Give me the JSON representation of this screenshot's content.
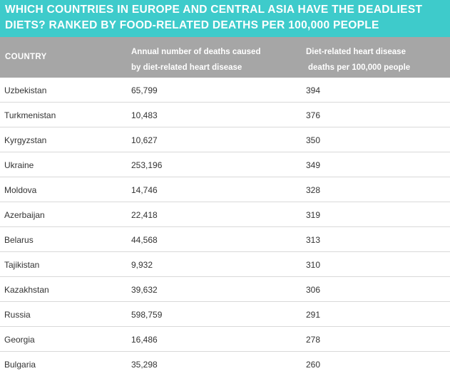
{
  "title": {
    "line1": "WHICH COUNTRIES IN EUROPE AND CENTRAL ASIA HAVE THE DEADLIEST",
    "line2": "DIETS? RANKED BY FOOD-RELATED DEATHS PER 100,000 PEOPLE"
  },
  "header": {
    "country": "COUNTRY",
    "deaths_line1": "Annual number of deaths caused",
    "deaths_line2": "by diet-related heart disease",
    "rate_line1": "Diet-related heart disease",
    "rate_line2": "deaths per 100,000 people"
  },
  "colors": {
    "title_bg": "#3ecbcb",
    "header_bg": "#a6a6a6",
    "row_divider": "#d9d9d9",
    "text": "#333333"
  },
  "chart_data": {
    "type": "table",
    "columns": [
      "COUNTRY",
      "Annual number of deaths caused by diet-related heart disease",
      "Diet-related heart disease deaths per 100,000 people"
    ],
    "rows": [
      [
        "Uzbekistan",
        "65,799",
        "394"
      ],
      [
        "Turkmenistan",
        "10,483",
        "376"
      ],
      [
        "Kyrgyzstan",
        "10,627",
        "350"
      ],
      [
        "Ukraine",
        "253,196",
        "349"
      ],
      [
        "Moldova",
        "14,746",
        "328"
      ],
      [
        "Azerbaijan",
        "22,418",
        "319"
      ],
      [
        "Belarus",
        "44,568",
        "313"
      ],
      [
        "Tajikistan",
        "9,932",
        "310"
      ],
      [
        "Kazakhstan",
        "39,632",
        "306"
      ],
      [
        "Russia",
        "598,759",
        "291"
      ],
      [
        "Georgia",
        "16,486",
        "278"
      ],
      [
        "Bulgaria",
        "35,298",
        "260"
      ]
    ]
  }
}
